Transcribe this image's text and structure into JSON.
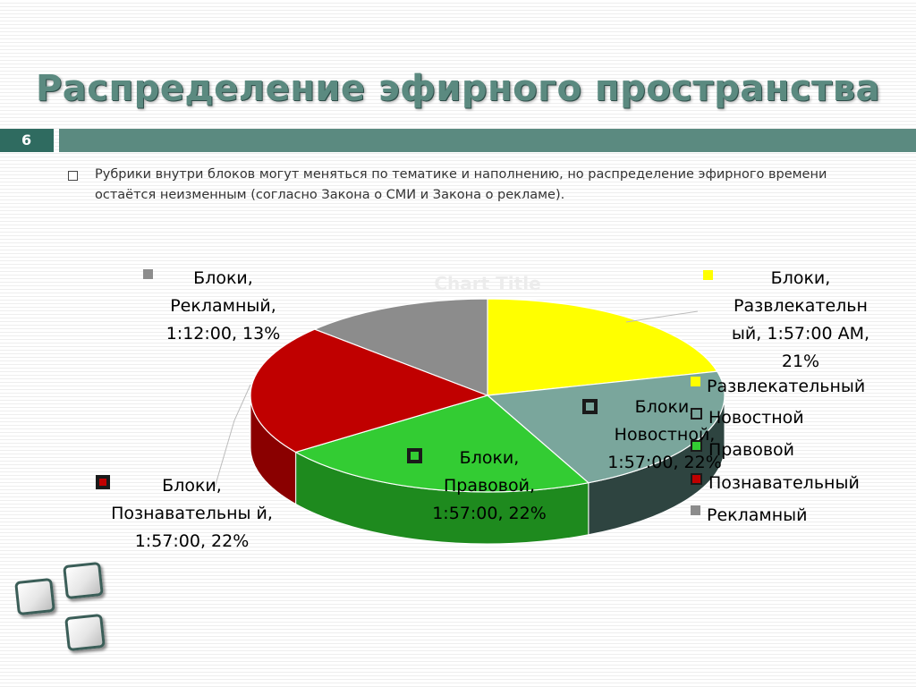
{
  "slide": {
    "title": "Распределение эфирного пространства",
    "number": "6",
    "bullet": "Рубрики внутри блоков могут меняться по тематике и наполнению, но распределение эфирного времени остаётся неизменным (согласно Закона о СМИ и Закона о рекламе)."
  },
  "chart_data": {
    "type": "pie",
    "title": "Chart Title",
    "legend_position": "right",
    "slices": [
      {
        "name": "Развлекательный",
        "value": 21,
        "duration": "1:57:00",
        "color": "#ffff00",
        "side_color": "#cccc00",
        "label": "Блоки, Развлекательный, 1:57:00 AM, 21%"
      },
      {
        "name": "Новостной",
        "value": 22,
        "duration": "1:57:00",
        "color": "#7aa69c",
        "side_color": "#2e4440",
        "label": "Блоки, Новостной, 1:57:00, 22%"
      },
      {
        "name": "Правовой",
        "value": 22,
        "duration": "1:57:00",
        "color": "#33cc33",
        "side_color": "#1e8a1e",
        "label": "Блоки, Правовой, 1:57:00, 22%"
      },
      {
        "name": "Познавательный",
        "value": 22,
        "duration": "1:57:00",
        "color": "#c00000",
        "side_color": "#8a0000",
        "label": "Блоки, Познавательный, 1:57:00, 22%"
      },
      {
        "name": "Рекламный",
        "value": 13,
        "duration": "1:12:00",
        "color": "#8c8c8c",
        "side_color": "#5e5e5e",
        "label": "Блоки, Рекламный, 1:12:00, 13%"
      }
    ]
  },
  "labels": {
    "entertainment": "Блоки, Развлекательн ый, 1:57:00 AM, 21%",
    "news": "Блоки, Новостной, 1:57:00, 22%",
    "legal": "Блоки, Правовой, 1:57:00, 22%",
    "cognitive": "Блоки, Познавательны й, 1:57:00, 22%",
    "ads": "Блоки, Рекламный, 1:12:00, 13%"
  },
  "legend": [
    {
      "label": "Развлекательный",
      "color": "#ffff00"
    },
    {
      "label": "Новостной",
      "color": "#7aa69c"
    },
    {
      "label": "Правовой",
      "color": "#33cc33"
    },
    {
      "label": "Познавательный",
      "color": "#c00000"
    },
    {
      "label": "Рекламный",
      "color": "#8c8c8c"
    }
  ],
  "theme": {
    "accent": "#5b8a80",
    "accent_dark": "#2f6b60"
  }
}
